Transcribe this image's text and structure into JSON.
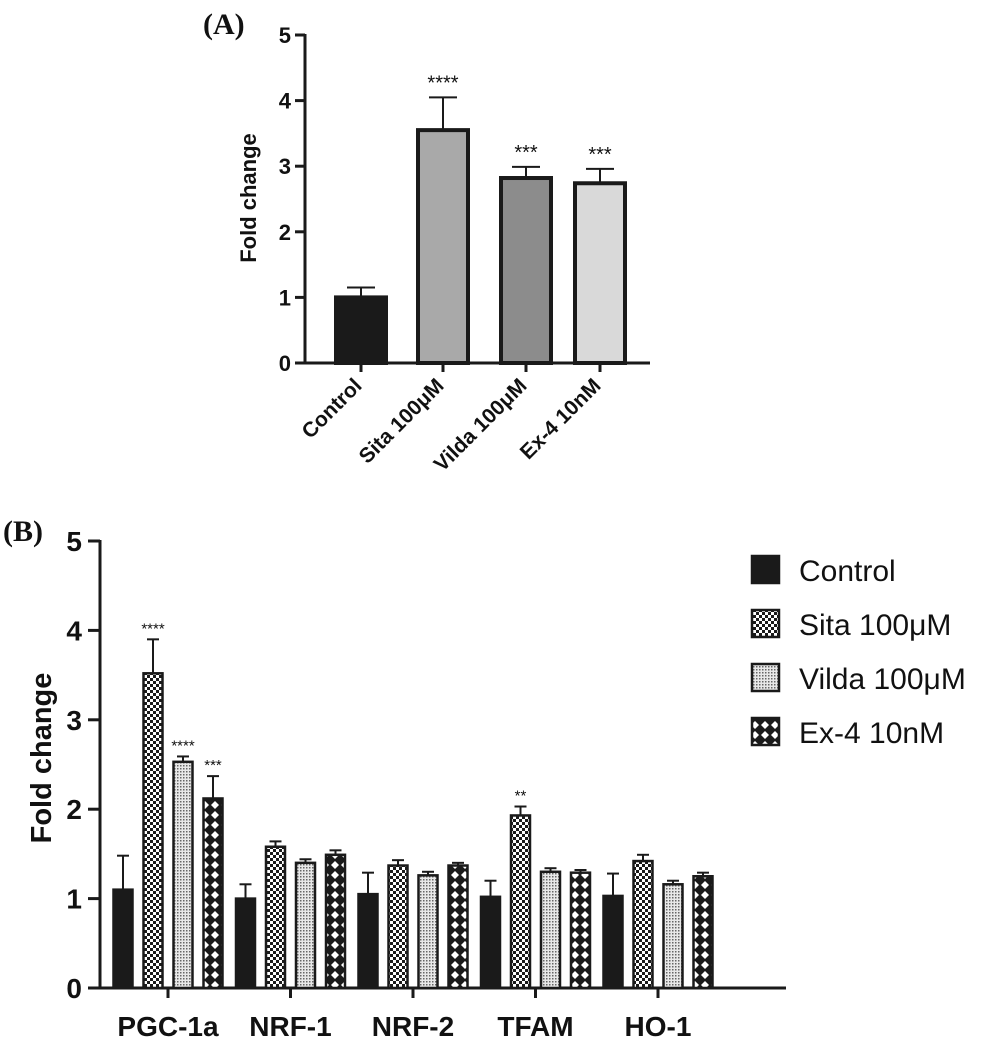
{
  "chart_data": [
    {
      "type": "bar",
      "panel_label": "(A)",
      "categories": [
        "Control",
        "Sita 100μM",
        "Vilda 100μM",
        "Ex-4 10nM"
      ],
      "values": [
        1.0,
        3.55,
        2.82,
        2.74
      ],
      "errors": [
        0.15,
        0.5,
        0.17,
        0.22
      ],
      "significance": [
        "",
        "****",
        "***",
        "***"
      ],
      "colors": [
        "#1a1a1a",
        "#a9a9a9",
        "#8c8c8c",
        "#d9d9d9"
      ],
      "title": "",
      "xlabel": "",
      "ylabel": "Fold change",
      "ylim": [
        0,
        5
      ],
      "yticks": [
        "0",
        "1",
        "2",
        "3",
        "4",
        "5"
      ]
    },
    {
      "type": "bar",
      "panel_label": "(B)",
      "categories": [
        "PGC-1a",
        "NRF-1",
        "NRF-2",
        "TFAM",
        "HO-1"
      ],
      "series": [
        {
          "name": "Control",
          "pattern": "solid",
          "values": [
            1.1,
            1.0,
            1.05,
            1.02,
            1.03
          ],
          "errors": [
            0.38,
            0.16,
            0.24,
            0.18,
            0.25
          ],
          "significance": [
            "",
            "",
            "",
            "",
            ""
          ]
        },
        {
          "name": "Sita 100μM",
          "pattern": "checker",
          "values": [
            3.52,
            1.58,
            1.37,
            1.93,
            1.42
          ],
          "errors": [
            0.38,
            0.06,
            0.06,
            0.1,
            0.07
          ],
          "significance": [
            "****",
            "",
            "",
            "**",
            ""
          ]
        },
        {
          "name": "Vilda 100μM",
          "pattern": "fine-dots",
          "values": [
            2.53,
            1.4,
            1.26,
            1.3,
            1.16
          ],
          "errors": [
            0.06,
            0.04,
            0.04,
            0.04,
            0.04
          ],
          "significance": [
            "****",
            "",
            "",
            "",
            ""
          ]
        },
        {
          "name": "Ex-4 10nM",
          "pattern": "diamonds",
          "values": [
            2.12,
            1.49,
            1.37,
            1.29,
            1.25
          ],
          "errors": [
            0.25,
            0.05,
            0.03,
            0.03,
            0.04
          ],
          "significance": [
            "***",
            "",
            "",
            "",
            ""
          ]
        }
      ],
      "title": "",
      "xlabel": "",
      "ylabel": "Fold change",
      "ylim": [
        0,
        5
      ],
      "yticks": [
        "0",
        "1",
        "2",
        "3",
        "4",
        "5"
      ],
      "legend_position": "top-right"
    }
  ]
}
